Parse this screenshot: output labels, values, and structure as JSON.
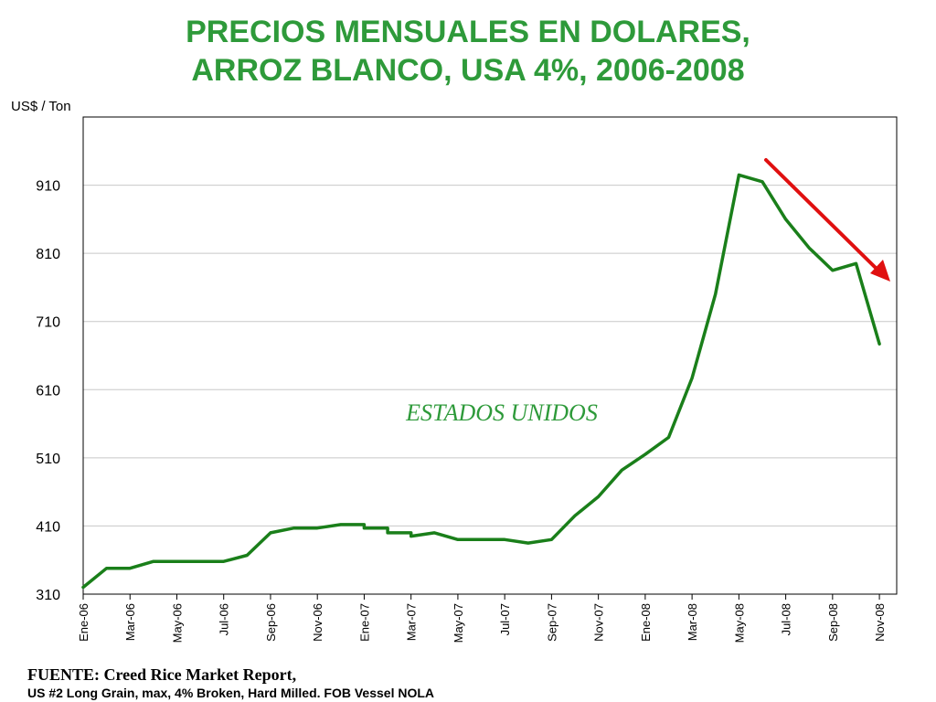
{
  "title": {
    "line1": "PRECIOS MENSUALES EN DOLARES,",
    "line2": "ARROZ BLANCO, USA 4%, 2006-2008"
  },
  "source": {
    "line1": "FUENTE: Creed Rice Market Report,",
    "line2": "US #2 Long Grain, max, 4% Broken, Hard Milled. FOB Vessel NOLA"
  },
  "colors": {
    "title": "#2e9a3a",
    "series": "#1a7f1a",
    "annotation": "#2e9a3a",
    "arrow": "#e01010",
    "grid": "#c8c8c8"
  },
  "chart_data": {
    "type": "line",
    "ylabel": "US$ / Ton",
    "ylim": [
      310,
      1010
    ],
    "yticks": [
      310,
      410,
      510,
      610,
      710,
      810,
      910
    ],
    "grid": true,
    "xticks": [
      "Ene-06",
      "Mar-06",
      "May-06",
      "Jul-06",
      "Sep-06",
      "Nov-06",
      "Ene-07",
      "Mar-07",
      "May-07",
      "Jul-07",
      "Sep-07",
      "Nov-07",
      "Ene-08",
      "Mar-08",
      "May-08",
      "Jul-08",
      "Sep-08",
      "Nov-08"
    ],
    "annotation": "ESTADOS UNIDOS",
    "trend_arrow": "down",
    "series": [
      {
        "x": [
          "2006-01-01",
          "2006-02-01",
          "2006-03-01",
          "2006-04-01",
          "2006-05-01",
          "2006-06-01",
          "2006-07-01",
          "2006-08-01",
          "2006-09-01",
          "2006-10-01",
          "2006-11-01",
          "2006-12-01",
          "2007-01-01",
          "2007-01-01",
          "2007-02-01",
          "2007-02-01",
          "2007-03-01",
          "2007-03-01",
          "2007-04-01",
          "2007-05-01",
          "2007-06-01",
          "2007-07-01",
          "2007-08-01",
          "2007-09-01",
          "2007-10-01",
          "2007-11-01",
          "2007-12-01",
          "2008-01-01",
          "2008-02-01",
          "2008-03-01",
          "2008-04-01",
          "2008-05-01",
          "2008-06-01",
          "2008-07-01",
          "2008-08-01",
          "2008-09-01",
          "2008-10-01",
          "2008-11-01"
        ],
        "y": [
          320,
          348,
          348,
          358,
          358,
          358,
          358,
          367,
          400,
          407,
          407,
          412,
          412,
          407,
          407,
          400,
          400,
          395,
          400,
          390,
          390,
          390,
          385,
          390,
          425,
          453,
          492,
          515,
          540,
          627,
          750,
          925,
          915,
          860,
          818,
          785,
          795,
          677
        ]
      }
    ]
  }
}
